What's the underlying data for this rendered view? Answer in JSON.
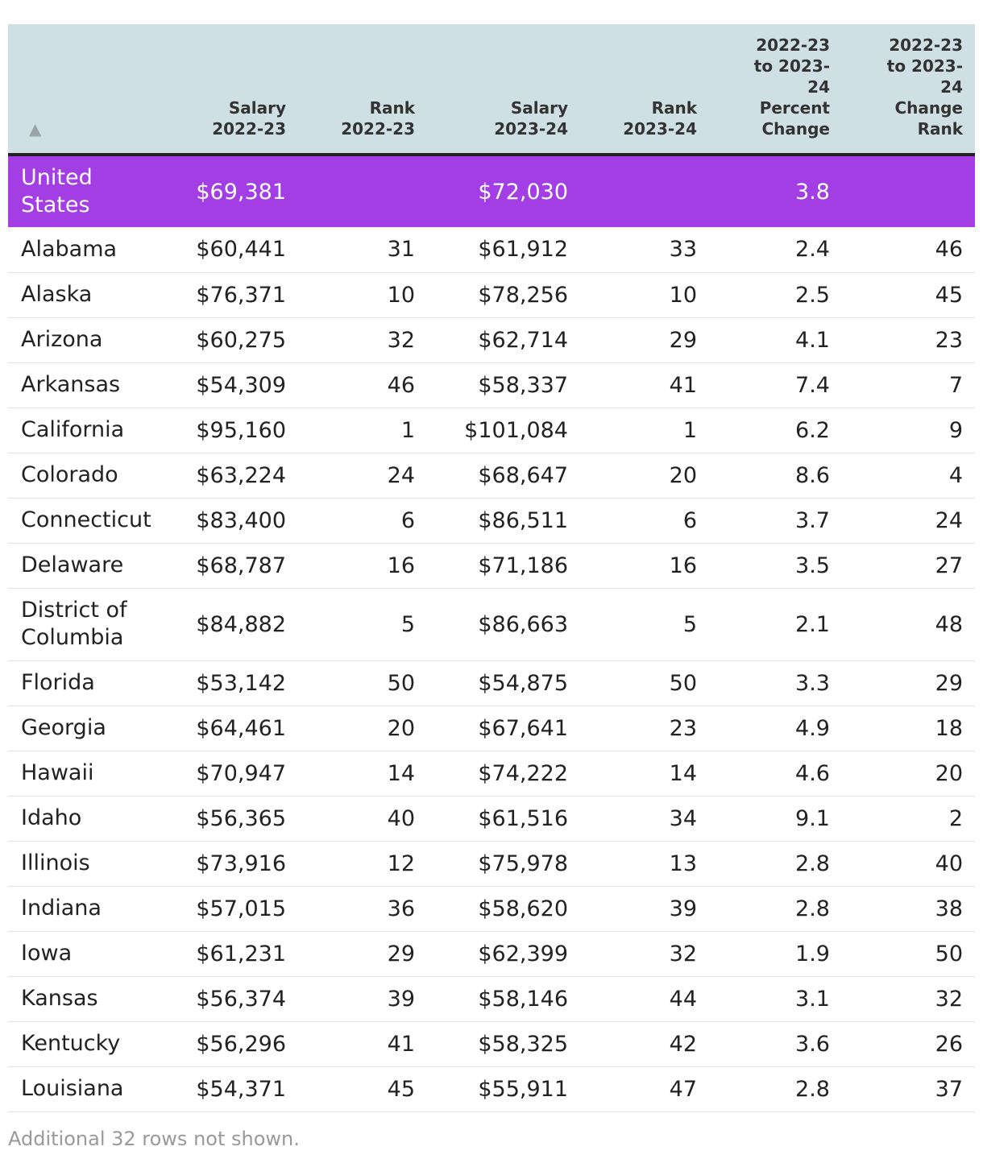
{
  "table": {
    "sort_indicator": "▲",
    "columns": [
      "",
      "Salary 2022-23",
      "Rank 2022-23",
      "Salary 2023-24",
      "Rank 2023-24",
      "2022-23 to 2023-24 Percent Change",
      "2022-23 to 2023-24 Change Rank"
    ],
    "column_lines": [
      [
        ""
      ],
      [
        "Salary",
        "2022-23"
      ],
      [
        "Rank",
        "2022-23"
      ],
      [
        "Salary",
        "2023-24"
      ],
      [
        "Rank",
        "2023-24"
      ],
      [
        "2022-23",
        "to 2023-",
        "24",
        "Percent",
        "Change"
      ],
      [
        "2022-23",
        "to 2023-",
        "24",
        "Change",
        "Rank"
      ]
    ],
    "highlight_color": "#a23ee3",
    "header_color": "#cfe0e5",
    "rows": [
      {
        "name": "United States",
        "name_lines": [
          "United",
          "States"
        ],
        "salary_2223": "$69,381",
        "rank_2223": "",
        "salary_2324": "$72,030",
        "rank_2324": "",
        "pct_change": "3.8",
        "change_rank": "",
        "highlight": true
      },
      {
        "name": "Alabama",
        "salary_2223": "$60,441",
        "rank_2223": "31",
        "salary_2324": "$61,912",
        "rank_2324": "33",
        "pct_change": "2.4",
        "change_rank": "46"
      },
      {
        "name": "Alaska",
        "salary_2223": "$76,371",
        "rank_2223": "10",
        "salary_2324": "$78,256",
        "rank_2324": "10",
        "pct_change": "2.5",
        "change_rank": "45"
      },
      {
        "name": "Arizona",
        "salary_2223": "$60,275",
        "rank_2223": "32",
        "salary_2324": "$62,714",
        "rank_2324": "29",
        "pct_change": "4.1",
        "change_rank": "23"
      },
      {
        "name": "Arkansas",
        "salary_2223": "$54,309",
        "rank_2223": "46",
        "salary_2324": "$58,337",
        "rank_2324": "41",
        "pct_change": "7.4",
        "change_rank": "7"
      },
      {
        "name": "California",
        "salary_2223": "$95,160",
        "rank_2223": "1",
        "salary_2324": "$101,084",
        "rank_2324": "1",
        "pct_change": "6.2",
        "change_rank": "9"
      },
      {
        "name": "Colorado",
        "salary_2223": "$63,224",
        "rank_2223": "24",
        "salary_2324": "$68,647",
        "rank_2324": "20",
        "pct_change": "8.6",
        "change_rank": "4"
      },
      {
        "name": "Connecticut",
        "salary_2223": "$83,400",
        "rank_2223": "6",
        "salary_2324": "$86,511",
        "rank_2324": "6",
        "pct_change": "3.7",
        "change_rank": "24"
      },
      {
        "name": "Delaware",
        "salary_2223": "$68,787",
        "rank_2223": "16",
        "salary_2324": "$71,186",
        "rank_2324": "16",
        "pct_change": "3.5",
        "change_rank": "27"
      },
      {
        "name": "District of Columbia",
        "name_lines": [
          "District of",
          "Columbia"
        ],
        "salary_2223": "$84,882",
        "rank_2223": "5",
        "salary_2324": "$86,663",
        "rank_2324": "5",
        "pct_change": "2.1",
        "change_rank": "48"
      },
      {
        "name": "Florida",
        "salary_2223": "$53,142",
        "rank_2223": "50",
        "salary_2324": "$54,875",
        "rank_2324": "50",
        "pct_change": "3.3",
        "change_rank": "29"
      },
      {
        "name": "Georgia",
        "salary_2223": "$64,461",
        "rank_2223": "20",
        "salary_2324": "$67,641",
        "rank_2324": "23",
        "pct_change": "4.9",
        "change_rank": "18"
      },
      {
        "name": "Hawaii",
        "salary_2223": "$70,947",
        "rank_2223": "14",
        "salary_2324": "$74,222",
        "rank_2324": "14",
        "pct_change": "4.6",
        "change_rank": "20"
      },
      {
        "name": "Idaho",
        "salary_2223": "$56,365",
        "rank_2223": "40",
        "salary_2324": "$61,516",
        "rank_2324": "34",
        "pct_change": "9.1",
        "change_rank": "2"
      },
      {
        "name": "Illinois",
        "salary_2223": "$73,916",
        "rank_2223": "12",
        "salary_2324": "$75,978",
        "rank_2324": "13",
        "pct_change": "2.8",
        "change_rank": "40"
      },
      {
        "name": "Indiana",
        "salary_2223": "$57,015",
        "rank_2223": "36",
        "salary_2324": "$58,620",
        "rank_2324": "39",
        "pct_change": "2.8",
        "change_rank": "38"
      },
      {
        "name": "Iowa",
        "salary_2223": "$61,231",
        "rank_2223": "29",
        "salary_2324": "$62,399",
        "rank_2324": "32",
        "pct_change": "1.9",
        "change_rank": "50"
      },
      {
        "name": "Kansas",
        "salary_2223": "$56,374",
        "rank_2223": "39",
        "salary_2324": "$58,146",
        "rank_2324": "44",
        "pct_change": "3.1",
        "change_rank": "32"
      },
      {
        "name": "Kentucky",
        "salary_2223": "$56,296",
        "rank_2223": "41",
        "salary_2324": "$58,325",
        "rank_2324": "42",
        "pct_change": "3.6",
        "change_rank": "26"
      },
      {
        "name": "Louisiana",
        "salary_2223": "$54,371",
        "rank_2223": "45",
        "salary_2324": "$55,911",
        "rank_2324": "47",
        "pct_change": "2.8",
        "change_rank": "37"
      }
    ]
  },
  "footnote": "Additional 32 rows not shown."
}
